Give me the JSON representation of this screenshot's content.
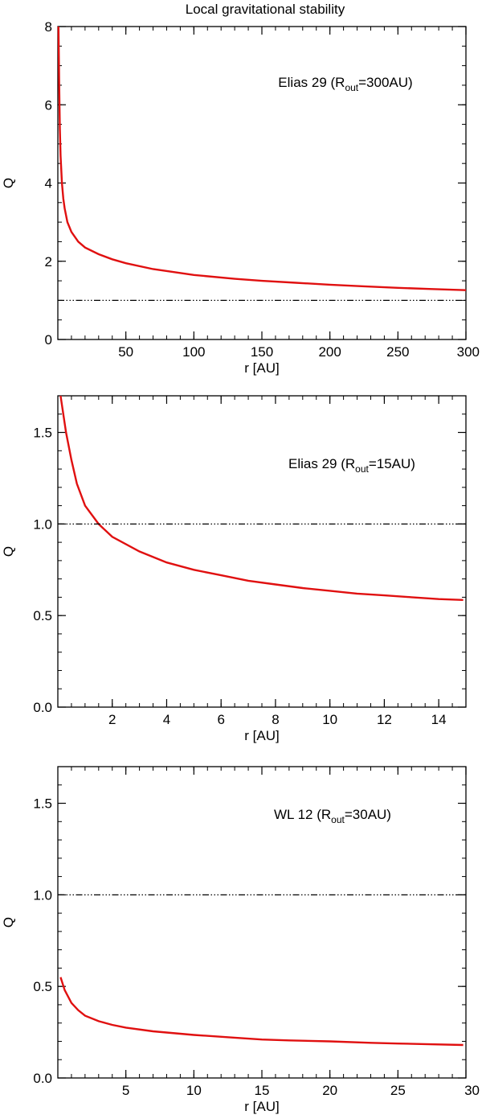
{
  "figure_title": "Local gravitational stability",
  "colors": {
    "curve": "#e01010",
    "reference": "#000000",
    "axes": "#000000"
  },
  "chart_data": [
    {
      "type": "line",
      "annotation": {
        "prefix": "Elias 29 (R",
        "subscript": "out",
        "suffix": "=300AU)"
      },
      "xlabel": "r [AU]",
      "ylabel": "Q",
      "xlim": [
        0,
        300
      ],
      "ylim": [
        0,
        8
      ],
      "xticks": [
        50,
        100,
        150,
        200,
        250,
        300
      ],
      "xtick_labels": [
        "50",
        "100",
        "150",
        "200",
        "250",
        "300"
      ],
      "yticks": [
        0,
        2,
        4,
        6,
        8
      ],
      "ytick_labels": [
        "0",
        "2",
        "4",
        "6",
        "8"
      ],
      "x_minor_step": 10,
      "y_minor_step": 0.5,
      "grid": false,
      "series": [
        {
          "style": "solid",
          "color": "#e01010",
          "x": [
            0.5,
            1,
            1.5,
            2,
            3,
            4,
            5,
            7,
            10,
            15,
            20,
            30,
            40,
            50,
            70,
            100,
            130,
            150,
            175,
            200,
            225,
            250,
            275,
            300
          ],
          "y": [
            8.0,
            6.5,
            5.4,
            4.7,
            4.0,
            3.6,
            3.35,
            3.0,
            2.75,
            2.5,
            2.35,
            2.18,
            2.05,
            1.95,
            1.8,
            1.65,
            1.55,
            1.5,
            1.45,
            1.4,
            1.36,
            1.32,
            1.29,
            1.26
          ]
        },
        {
          "style": "dash-dot-dot-dot",
          "color": "#000000",
          "x": [
            0,
            300
          ],
          "y": [
            1,
            1
          ]
        }
      ]
    },
    {
      "type": "line",
      "annotation": {
        "prefix": "Elias 29 (R",
        "subscript": "out",
        "suffix": "=15AU)"
      },
      "xlabel": "r [AU]",
      "ylabel": "Q",
      "xlim": [
        0,
        15
      ],
      "ylim": [
        0,
        1.7
      ],
      "xticks": [
        2,
        4,
        6,
        8,
        10,
        12,
        14
      ],
      "xtick_labels": [
        "2",
        "4",
        "6",
        "8",
        "10",
        "12",
        "14"
      ],
      "yticks": [
        0,
        0.5,
        1.0,
        1.5
      ],
      "ytick_labels": [
        "0.0",
        "0.5",
        "1.0",
        "1.5"
      ],
      "x_minor_step": 0.5,
      "y_minor_step": 0.1,
      "grid": false,
      "series": [
        {
          "style": "solid",
          "color": "#e01010",
          "x": [
            0.1,
            0.2,
            0.3,
            0.5,
            0.7,
            1.0,
            1.5,
            2,
            3,
            4,
            5,
            6,
            7,
            8,
            9,
            10,
            11,
            12,
            13,
            14,
            14.9
          ],
          "y": [
            1.7,
            1.6,
            1.5,
            1.35,
            1.22,
            1.1,
            1.0,
            0.93,
            0.85,
            0.79,
            0.75,
            0.72,
            0.69,
            0.67,
            0.65,
            0.635,
            0.62,
            0.61,
            0.6,
            0.59,
            0.585
          ]
        },
        {
          "style": "dash-dot-dot-dot",
          "color": "#000000",
          "x": [
            0,
            15
          ],
          "y": [
            1,
            1
          ]
        }
      ]
    },
    {
      "type": "line",
      "annotation": {
        "prefix": "WL 12 (R",
        "subscript": "out",
        "suffix": "=30AU)"
      },
      "xlabel": "r [AU]",
      "ylabel": "Q",
      "xlim": [
        0,
        30
      ],
      "ylim": [
        0,
        1.7
      ],
      "xticks": [
        5,
        10,
        15,
        20,
        25,
        30
      ],
      "xtick_labels": [
        "5",
        "10",
        "15",
        "20",
        "25",
        "30"
      ],
      "yticks": [
        0,
        0.5,
        1.0,
        1.5
      ],
      "ytick_labels": [
        "0.0",
        "0.5",
        "1.0",
        "1.5"
      ],
      "x_minor_step": 1,
      "y_minor_step": 0.1,
      "grid": false,
      "series": [
        {
          "style": "solid",
          "color": "#e01010",
          "x": [
            0.2,
            0.5,
            1,
            1.5,
            2,
            3,
            4,
            5,
            7,
            10,
            13,
            15,
            17,
            20,
            23,
            25,
            27,
            29.8
          ],
          "y": [
            0.55,
            0.48,
            0.41,
            0.37,
            0.34,
            0.31,
            0.29,
            0.275,
            0.255,
            0.235,
            0.22,
            0.21,
            0.205,
            0.2,
            0.192,
            0.188,
            0.185,
            0.18
          ]
        },
        {
          "style": "dash-dot-dot-dot",
          "color": "#000000",
          "x": [
            0,
            30
          ],
          "y": [
            1,
            1
          ]
        }
      ]
    }
  ]
}
